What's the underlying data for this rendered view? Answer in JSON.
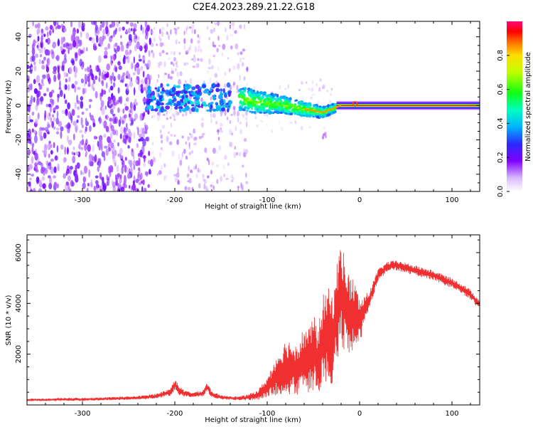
{
  "title": "C2E4.2023.289.21.22.G18",
  "chart_data": [
    {
      "type": "heatmap",
      "xlabel": "Height of straight line (km)",
      "ylabel": "Frequency (Hz)",
      "xlim": [
        -360,
        130
      ],
      "ylim": [
        -50,
        49
      ],
      "x_ticks": [
        -300,
        -200,
        -100,
        0,
        100
      ],
      "y_ticks": [
        -40,
        -20,
        0,
        20,
        40
      ],
      "colorbar": {
        "label": "Normalized spectral amplitude",
        "range": [
          0,
          1
        ],
        "ticks": [
          0.0,
          0.2,
          0.4,
          0.6,
          0.8
        ],
        "colormap": "rainbow (violet to red)"
      },
      "features": [
        {
          "x_range": [
            -360,
            -225
          ],
          "y_range": [
            -50,
            49
          ],
          "level": 0.12,
          "pattern": "diffuse speckle"
        },
        {
          "x_range": [
            -225,
            -120
          ],
          "y_range": [
            -50,
            49
          ],
          "level": 0.05,
          "pattern": "sparse speckle"
        },
        {
          "x_range": [
            -230,
            -140
          ],
          "y_range": [
            -3,
            12
          ],
          "level": 0.35,
          "pattern": "clustered blobs"
        },
        {
          "x_range": [
            -130,
            -25
          ],
          "y_range": [
            -6,
            6
          ],
          "level": 0.5,
          "pattern": "converging band"
        },
        {
          "x_range": [
            -25,
            130
          ],
          "y_range": [
            -1,
            1
          ],
          "level": 1.0,
          "pattern": "carrier line"
        }
      ],
      "ridge": [
        [
          -130,
          4
        ],
        [
          -110,
          2
        ],
        [
          -90,
          1
        ],
        [
          -70,
          -1
        ],
        [
          -50,
          -3
        ],
        [
          -40,
          -4
        ],
        [
          -30,
          -2
        ],
        [
          -20,
          0
        ],
        [
          -5,
          1
        ],
        [
          0,
          0.5
        ],
        [
          130,
          0
        ]
      ]
    },
    {
      "type": "line",
      "xlabel": "Height of straight line (km)",
      "ylabel": "SNR (10 * v/v)",
      "xlim": [
        -360,
        130
      ],
      "ylim": [
        0,
        6700
      ],
      "x_ticks": [
        -300,
        -200,
        -100,
        0,
        100
      ],
      "y_ticks": [
        2000,
        4000,
        6000
      ],
      "color": "#f03030",
      "series": [
        {
          "x": [
            -360,
            -340,
            -320,
            -300,
            -280,
            -260,
            -240,
            -220,
            -205,
            -200,
            -196,
            -190,
            -180,
            -170,
            -165,
            -160,
            -150,
            -140,
            -130,
            -120,
            -110,
            -100,
            -95,
            -90,
            -85,
            -80,
            -75,
            -70,
            -65,
            -60,
            -55,
            -50,
            -45,
            -40,
            -35,
            -30,
            -25,
            -20,
            -15,
            -10,
            -5,
            0,
            5,
            10,
            15,
            20,
            30,
            40,
            50,
            60,
            70,
            80,
            90,
            100,
            110,
            120,
            130
          ],
          "y": [
            200,
            200,
            220,
            220,
            240,
            260,
            280,
            350,
            500,
            800,
            600,
            450,
            400,
            450,
            700,
            420,
            300,
            280,
            260,
            300,
            400,
            700,
            900,
            1200,
            1300,
            1500,
            1500,
            1400,
            1500,
            1800,
            1700,
            2100,
            1700,
            2500,
            2800,
            2500,
            3500,
            4500,
            3800,
            3500,
            3600,
            3300,
            3700,
            4100,
            4600,
            5100,
            5450,
            5500,
            5400,
            5300,
            5200,
            5100,
            4950,
            4800,
            4600,
            4350,
            3950
          ],
          "spread": [
            50,
            50,
            60,
            60,
            60,
            70,
            70,
            100,
            150,
            250,
            200,
            120,
            100,
            120,
            200,
            120,
            80,
            80,
            80,
            120,
            200,
            400,
            600,
            800,
            900,
            1100,
            1100,
            1000,
            1200,
            1300,
            1300,
            1500,
            1300,
            1800,
            1900,
            1900,
            2000,
            2100,
            1800,
            1600,
            1300,
            900,
            600,
            400,
            300,
            250,
            200,
            200,
            200,
            200,
            200,
            200,
            200,
            200,
            200,
            200,
            200
          ]
        }
      ]
    }
  ]
}
